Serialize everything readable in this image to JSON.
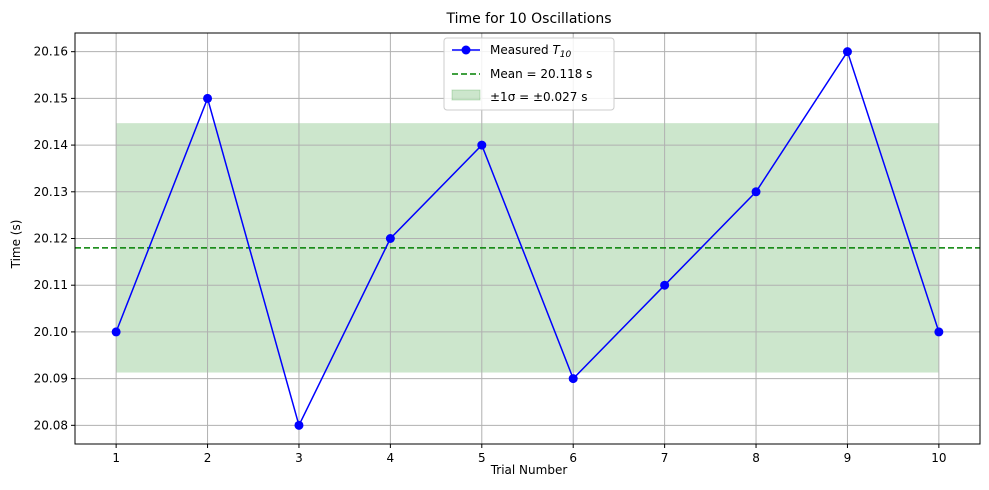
{
  "chart_data": {
    "type": "line",
    "title": "Time for 10 Oscillations",
    "xlabel": "Trial Number",
    "ylabel": "Time (s)",
    "x": [
      1,
      2,
      3,
      4,
      5,
      6,
      7,
      8,
      9,
      10
    ],
    "xlim": [
      0.55,
      10.45
    ],
    "ylim": [
      20.076,
      20.164
    ],
    "xticks": [
      1,
      2,
      3,
      4,
      5,
      6,
      7,
      8,
      9,
      10
    ],
    "yticks": [
      20.08,
      20.09,
      20.1,
      20.11,
      20.12,
      20.13,
      20.14,
      20.15,
      20.16
    ],
    "ytick_labels": [
      "20.08",
      "20.09",
      "20.10",
      "20.11",
      "20.12",
      "20.13",
      "20.14",
      "20.15",
      "20.16"
    ],
    "grid": true,
    "legend_position": "top-center",
    "series": [
      {
        "name_prefix": "Measured ",
        "name_symbol": "T",
        "name_subscript": "10",
        "values": [
          20.1,
          20.15,
          20.08,
          20.12,
          20.14,
          20.09,
          20.11,
          20.13,
          20.16,
          20.1
        ],
        "color": "#0000ff",
        "marker": "circle"
      }
    ],
    "mean_line": {
      "label": "Mean = 20.118 s",
      "value": 20.118,
      "color": "#008000",
      "style": "dashed"
    },
    "std_band": {
      "label": "±1σ = ±0.027 s",
      "lower": 20.0913,
      "upper": 20.1447,
      "x_from": 1,
      "x_to": 10,
      "color": "#008000",
      "opacity": 0.2
    }
  }
}
